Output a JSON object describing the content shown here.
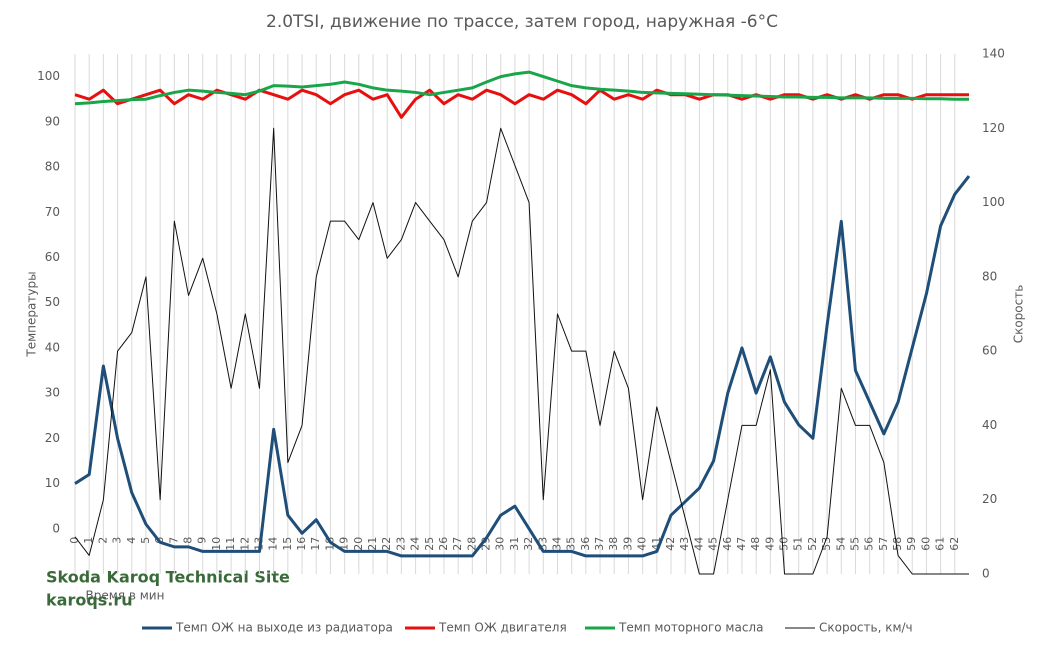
{
  "chart_data": {
    "type": "line",
    "title": "2.0TSI, движение по трассе, затем город, наружная -6°C",
    "x_label": "Время в мин",
    "y_label": "Температуры",
    "y2_label": "Скорость",
    "annotations": [
      "Skoda Karoq Technical Site",
      "karoqs.ru"
    ],
    "x": [
      0,
      1,
      2,
      3,
      4,
      5,
      6,
      7,
      8,
      9,
      10,
      11,
      12,
      13,
      14,
      15,
      16,
      17,
      18,
      19,
      20,
      21,
      22,
      23,
      24,
      25,
      26,
      27,
      28,
      29,
      30,
      31,
      32,
      33,
      34,
      35,
      36,
      37,
      38,
      39,
      40,
      41,
      42,
      43,
      44,
      45,
      46,
      47,
      48,
      49,
      50,
      51,
      52,
      53,
      54,
      55,
      56,
      57,
      58,
      59,
      60,
      61,
      62,
      63
    ],
    "xlim": [
      0,
      63
    ],
    "xticks": [
      0,
      1,
      2,
      3,
      4,
      5,
      6,
      7,
      8,
      9,
      10,
      11,
      12,
      13,
      14,
      15,
      16,
      17,
      18,
      19,
      20,
      21,
      22,
      23,
      24,
      25,
      26,
      27,
      28,
      29,
      30,
      31,
      32,
      33,
      34,
      35,
      36,
      37,
      38,
      39,
      40,
      41,
      42,
      43,
      44,
      45,
      46,
      47,
      48,
      49,
      50,
      51,
      52,
      53,
      54,
      55,
      56,
      57,
      58,
      59,
      60,
      61,
      62
    ],
    "ylim": [
      -10,
      105
    ],
    "yticks": [
      0,
      10,
      20,
      30,
      40,
      50,
      60,
      70,
      80,
      90,
      100
    ],
    "y2lim": [
      0,
      140
    ],
    "y2ticks": [
      0,
      20,
      40,
      60,
      80,
      100,
      120,
      140
    ],
    "grid": "x",
    "legend": "bottom",
    "series": [
      {
        "name": "Темп ОЖ на выходе из радиатора",
        "color": "#1f4e79",
        "values": [
          10,
          12,
          36,
          20,
          8,
          1,
          -3,
          -4,
          -4,
          -5,
          -5,
          -5,
          -5,
          -5,
          22,
          3,
          -1,
          2,
          -3,
          -5,
          -5,
          -5,
          -5,
          -6,
          -6,
          -6,
          -6,
          -6,
          -6,
          -2,
          3,
          5,
          0,
          -5,
          -5,
          -5,
          -6,
          -6,
          -6,
          -6,
          -6,
          -5,
          3,
          6,
          9,
          15,
          30,
          40,
          30,
          38,
          28,
          23,
          20,
          45,
          68,
          35,
          28,
          21,
          28,
          40,
          52,
          67,
          74,
          78
        ]
      },
      {
        "name": "Темп ОЖ двигателя",
        "color": "#e8100f",
        "values": [
          96,
          95,
          97,
          94,
          95,
          96,
          97,
          94,
          96,
          95,
          97,
          96,
          95,
          97,
          96,
          95,
          97,
          96,
          94,
          96,
          97,
          95,
          96,
          91,
          95,
          97,
          94,
          96,
          95,
          97,
          96,
          94,
          96,
          95,
          97,
          96,
          94,
          97,
          95,
          96,
          95,
          97,
          96,
          96,
          95,
          96,
          96,
          95,
          96,
          95,
          96,
          96,
          95,
          96,
          95,
          96,
          95,
          96,
          96,
          95,
          96,
          96,
          96,
          96
        ]
      },
      {
        "name": "Темп моторного масла",
        "color": "#19a64a",
        "values": [
          94,
          94.2,
          94.5,
          94.7,
          94.9,
          95,
          95.8,
          96.5,
          97,
          96.8,
          96.5,
          96.3,
          96,
          96.8,
          98,
          97.9,
          97.7,
          98,
          98.3,
          98.8,
          98.3,
          97.5,
          97,
          96.8,
          96.5,
          96,
          96.5,
          97,
          97.5,
          98.8,
          100,
          100.6,
          101,
          100,
          99,
          98,
          97.5,
          97.2,
          97,
          96.8,
          96.5,
          96.4,
          96.3,
          96.2,
          96.1,
          96,
          95.9,
          95.8,
          95.7,
          95.6,
          95.5,
          95.5,
          95.4,
          95.4,
          95.3,
          95.3,
          95.3,
          95.2,
          95.2,
          95.2,
          95.1,
          95.1,
          95,
          95
        ]
      },
      {
        "name": "Скорость, км/ч",
        "color": "#111111",
        "axis": "y2",
        "values": [
          10,
          5,
          20,
          60,
          65,
          80,
          20,
          95,
          75,
          85,
          70,
          50,
          70,
          50,
          120,
          30,
          40,
          80,
          95,
          95,
          90,
          100,
          85,
          90,
          100,
          95,
          90,
          80,
          95,
          100,
          120,
          110,
          100,
          20,
          70,
          60,
          60,
          40,
          60,
          50,
          20,
          45,
          30,
          15,
          0,
          0,
          20,
          40,
          40,
          55,
          0,
          0,
          0,
          10,
          50,
          40,
          40,
          30,
          5,
          0,
          0,
          0,
          0,
          0
        ]
      }
    ]
  }
}
